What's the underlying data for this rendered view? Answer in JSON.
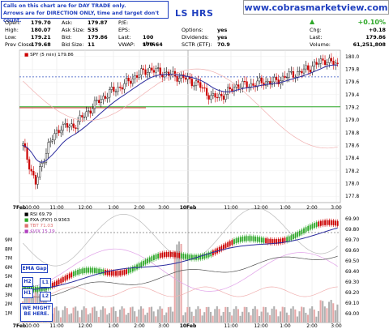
{
  "notice": {
    "line1": "Calls on this chart are for DAY TRADE only.",
    "line2": "Arrows are for DIRECTION ONLY, time and target don't count."
  },
  "ticker": "LS HRS",
  "site": "www.cobrasmarketview.com",
  "stats": {
    "open_label": "Open:",
    "open": "179.70",
    "high_label": "High:",
    "high": "180.07",
    "low_label": "Low:",
    "low": "179.21",
    "prev_close_label": "Prev Close:",
    "prev_close": "179.68",
    "ask_label": "Ask:",
    "ask": "179.87",
    "ask_size_label": "Ask Size:",
    "ask_size": "535",
    "bid_label": "Bid:",
    "bid": "179.86",
    "bid_size_label": "Bid Size:",
    "bid_size": "11",
    "pe_label": "P/E:",
    "pe": "",
    "eps_label": "EPS:",
    "eps": "",
    "last_label": "Last:",
    "last": "100 shrs",
    "vwap_label": "VWAP:",
    "vwap": "179.64",
    "options_label": "Options:",
    "options": "yes",
    "dividends_label": "Dividends:",
    "dividends": "yes",
    "sctr_label": "SCTR (ETF):",
    "sctr": "70.9",
    "change_pct": "+0.10%",
    "chg_label": "Chg:",
    "chg": "+0.18",
    "last2_label": "Last:",
    "last2": "179.86",
    "volume_label": "Volume:",
    "volume": "61,251,808"
  },
  "legend": {
    "price_label": "SPY (5 min) 179.86",
    "rsi_label": "RSI 69.79",
    "pxa_label": "PXA (FXY) 0.9363",
    "tbt_label": "TBT 71.03",
    "vix_label": "$VIX 15.19"
  },
  "signals": {
    "ema_gap": "EMA Gap",
    "h2": "H2",
    "h1": "H1",
    "l1": "L1",
    "l2": "L2",
    "might_be_here": "WE MIGHT BE HERE."
  },
  "colors": {
    "up": "#2ea829",
    "down": "#cc0000",
    "ema": "#2b2b9e",
    "accent": "#1f3fbf"
  },
  "chart_data": {
    "type": "line",
    "title": "SPY (5 min) 179.86",
    "x_ticks": [
      "7Feb",
      "10:00",
      "11:00",
      "12:00",
      "1:00",
      "2:00",
      "3:00",
      "10Feb",
      "11:00",
      "12:00",
      "1:00",
      "2:00",
      "3:00"
    ],
    "price_yticks": [
      "180.0",
      "179.8",
      "179.6",
      "179.4",
      "179.2",
      "179.0",
      "178.8",
      "178.6",
      "178.4",
      "178.2",
      "178.0",
      "177.8"
    ],
    "price_ylim": [
      177.7,
      180.1
    ],
    "series": [
      {
        "name": "SPY",
        "x": [
          "9:45",
          "10:15",
          "10:45",
          "11:15",
          "11:45",
          "12:15",
          "12:45",
          "13:15",
          "13:45",
          "14:15",
          "14:45",
          "15:15",
          "15:45",
          "10Feb 9:45",
          "10:15",
          "10:45",
          "11:15",
          "11:45",
          "12:15",
          "12:45",
          "13:15",
          "13:45",
          "14:15",
          "14:45",
          "15:15",
          "15:45"
        ],
        "values": [
          178.6,
          178.0,
          178.6,
          178.9,
          178.9,
          179.1,
          179.3,
          179.45,
          179.55,
          179.7,
          179.8,
          179.75,
          179.7,
          179.65,
          179.55,
          179.35,
          179.4,
          179.55,
          179.55,
          179.6,
          179.6,
          179.7,
          179.75,
          179.85,
          179.95,
          179.86
        ]
      }
    ],
    "reference_lines": {
      "prev_close": 179.68,
      "green_line": 179.21
    },
    "rsi_yticks": [
      "69.90",
      "69.80",
      "69.70",
      "69.60",
      "69.50",
      "69.40",
      "69.30",
      "69.20",
      "69.10",
      "69.00"
    ],
    "volume_yticks": [
      "9M",
      "8M",
      "7M",
      "6M",
      "5M",
      "4M",
      "3M",
      "2M",
      "1M"
    ]
  }
}
